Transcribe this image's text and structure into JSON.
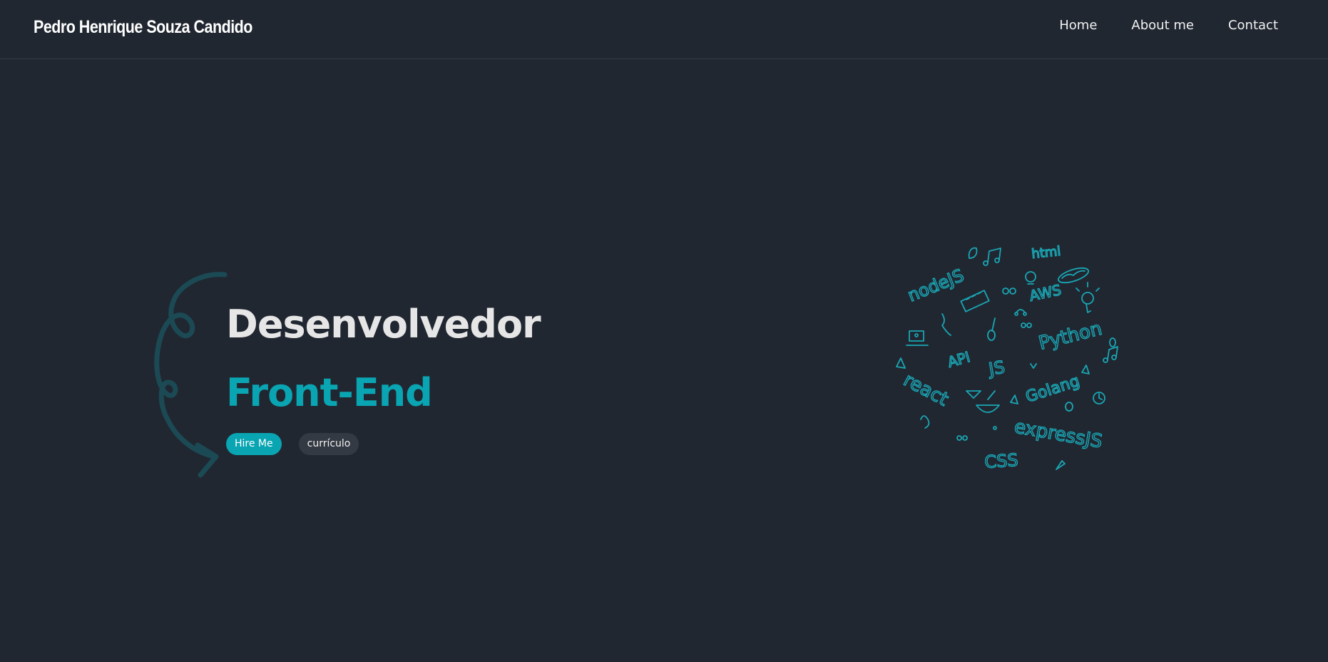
{
  "header": {
    "brand": "Pedro Henrique Souza Candido",
    "nav": [
      "Home",
      "About me",
      "Contact"
    ]
  },
  "hero": {
    "title_line1": "Desenvolvedor",
    "title_line2": "Front-End",
    "buttons": {
      "hire": "Hire Me",
      "cv": "currículo"
    }
  },
  "doodle_words": {
    "nodejs": "nodeJS",
    "html": "html",
    "aws": "AWS",
    "python": "Python",
    "react": "react",
    "js": "JS",
    "golang": "Golang",
    "express": "expressJS",
    "css": "CSS",
    "api": "API"
  },
  "colors": {
    "background": "#202731",
    "accent": "#0aa5b2",
    "title": "#e6e6e6",
    "squiggle": "#1b4a55"
  }
}
